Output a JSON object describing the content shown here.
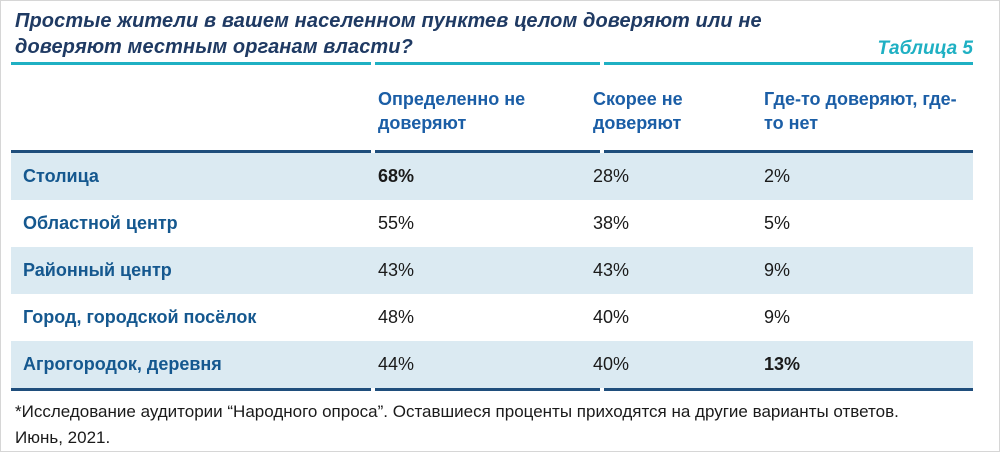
{
  "title": {
    "line1": "Простые жители в вашем населенном пунктев целом доверяют или не",
    "line2": "доверяют местным органам власти?",
    "tag": "Таблица 5"
  },
  "colors": {
    "title_navy": "#1f3a63",
    "accent_teal": "#1fb0c3",
    "header_blue": "#1b5ea6",
    "label_blue": "#15588f",
    "rule_navy": "#1f4e7c",
    "row_alt_bg": "#dbeaf2",
    "value_text": "#1a1a1a"
  },
  "table": {
    "columns": [
      "Определенно не доверяют",
      "Скорее не доверяют",
      "Где-то доверяют, где-то нет"
    ],
    "rows": [
      {
        "label": "Столица",
        "values": [
          {
            "text": "68%",
            "bold": true
          },
          {
            "text": "28%",
            "bold": false
          },
          {
            "text": "2%",
            "bold": false
          }
        ]
      },
      {
        "label": "Областной центр",
        "values": [
          {
            "text": "55%",
            "bold": false
          },
          {
            "text": "38%",
            "bold": false
          },
          {
            "text": "5%",
            "bold": false
          }
        ]
      },
      {
        "label": "Районный центр",
        "values": [
          {
            "text": "43%",
            "bold": false
          },
          {
            "text": "43%",
            "bold": false
          },
          {
            "text": "9%",
            "bold": false
          }
        ]
      },
      {
        "label": "Город, городской посёлок",
        "values": [
          {
            "text": "48%",
            "bold": false
          },
          {
            "text": "40%",
            "bold": false
          },
          {
            "text": "9%",
            "bold": false
          }
        ]
      },
      {
        "label": "Агрогородок, деревня",
        "values": [
          {
            "text": "44%",
            "bold": false
          },
          {
            "text": "40%",
            "bold": false
          },
          {
            "text": "13%",
            "bold": true
          }
        ]
      }
    ]
  },
  "footnote": {
    "line1": "*Исследование аудитории “Народного опроса”. Оставшиеся проценты приходятся на другие варианты ответов.",
    "line2": "Июнь, 2021."
  },
  "chart_data": {
    "type": "table",
    "title": "Простые жители в вашем населенном пунктев целом доверяют или не доверяют местным органам власти?",
    "categories": [
      "Столица",
      "Областной центр",
      "Районный центр",
      "Город, городской посёлок",
      "Агрогородок, деревня"
    ],
    "series": [
      {
        "name": "Определенно не доверяют",
        "values": [
          68,
          55,
          43,
          48,
          44
        ]
      },
      {
        "name": "Скорее не доверяют",
        "values": [
          28,
          38,
          43,
          40,
          40
        ]
      },
      {
        "name": "Где-то доверяют, где-то нет",
        "values": [
          2,
          5,
          9,
          9,
          13
        ]
      }
    ],
    "value_unit": "%",
    "note": "Оставшиеся проценты приходятся на другие варианты ответов. Июнь, 2021."
  }
}
